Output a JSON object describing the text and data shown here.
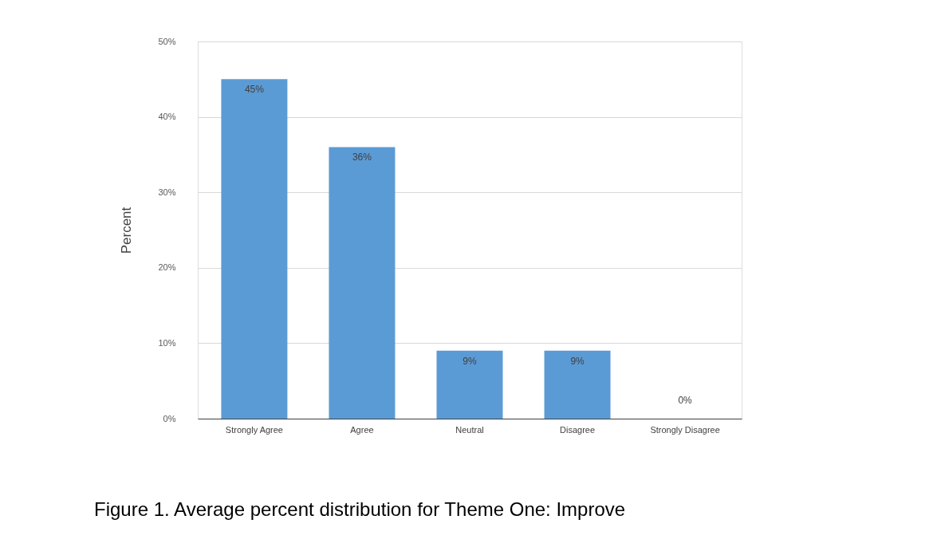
{
  "chart_data": {
    "type": "bar",
    "ylabel": "Percent",
    "categories": [
      "Strongly Agree",
      "Agree",
      "Neutral",
      "Disagree",
      "Strongly Disagree"
    ],
    "values": [
      45,
      36,
      9,
      9,
      0
    ],
    "value_labels": [
      "45%",
      "36%",
      "9%",
      "9%",
      "0%"
    ],
    "color": "#5b9bd5",
    "ylim": [
      0,
      50
    ],
    "yticks": [
      {
        "value": 0,
        "label": "0%"
      },
      {
        "value": 10,
        "label": "10%"
      },
      {
        "value": 20,
        "label": "20%"
      },
      {
        "value": 30,
        "label": "30%"
      },
      {
        "value": 40,
        "label": "40%"
      },
      {
        "value": 50,
        "label": "50%"
      }
    ],
    "grid": "y",
    "annotations": [
      "Figure 1. Average percent distribution for Theme One: Improve"
    ]
  }
}
